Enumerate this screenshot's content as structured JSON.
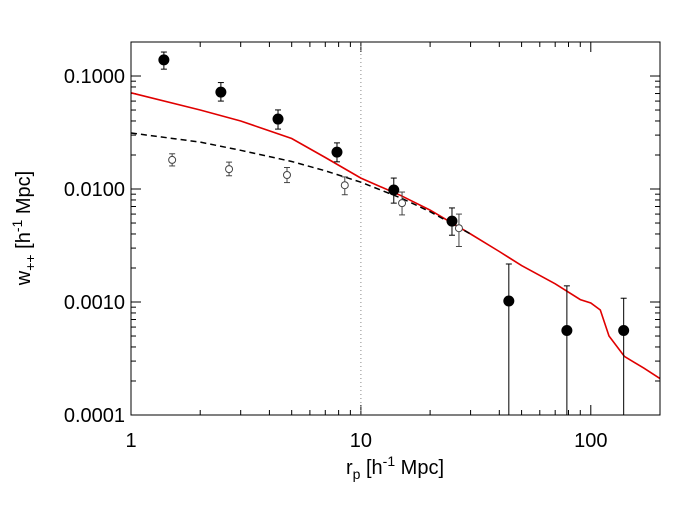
{
  "chart_data": {
    "type": "scatter",
    "log_x": true,
    "log_y": true,
    "xlim": [
      1,
      200
    ],
    "ylim": [
      0.0001,
      0.2
    ],
    "xticks": [
      1,
      10,
      100
    ],
    "xminorticks": [
      2,
      3,
      4,
      5,
      6,
      7,
      8,
      9,
      20,
      30,
      40,
      50,
      60,
      70,
      80,
      90,
      200
    ],
    "yticks": [
      {
        "value": 0.0001,
        "label": "0.0001"
      },
      {
        "value": 0.001,
        "label": "0.0010"
      },
      {
        "value": 0.01,
        "label": "0.0100"
      },
      {
        "value": 0.1,
        "label": "0.1000"
      }
    ],
    "yminorticks": [
      0.0002,
      0.0003,
      0.0004,
      0.0005,
      0.0006,
      0.0007,
      0.0008,
      0.0009,
      0.002,
      0.003,
      0.004,
      0.005,
      0.006,
      0.007,
      0.008,
      0.009,
      0.02,
      0.03,
      0.04,
      0.05,
      0.06,
      0.07,
      0.08,
      0.09,
      0.2
    ],
    "xlabel": {
      "main": "r",
      "sub": "p",
      "a": " [h",
      "sup": "-1",
      "b": " Mpc]"
    },
    "ylabel": {
      "main": "w",
      "sub": "++",
      "a": " [h",
      "sup": "-1",
      "b": " Mpc]"
    },
    "vline": {
      "x": 10,
      "color": "#888888"
    },
    "series": [
      {
        "filled": true,
        "color": "#000000",
        "x": [
          1.39,
          2.46,
          4.36,
          7.87,
          13.9,
          24.9,
          44.0,
          78.7,
          139
        ],
        "values": [
          0.139,
          0.072,
          0.0416,
          0.0212,
          0.0098,
          0.0052,
          0.00102,
          0.00056,
          0.00056
        ],
        "lower": [
          0.115,
          0.06,
          0.0339,
          0.0174,
          0.0075,
          0.0039,
          0.0001,
          0.0001,
          0.0001
        ],
        "upper": [
          0.163,
          0.0875,
          0.0501,
          0.0256,
          0.0125,
          0.0068,
          0.00217,
          0.00139,
          0.00108
        ]
      },
      {
        "filled": false,
        "color": "#444444",
        "x": [
          1.51,
          2.67,
          4.77,
          8.51,
          15.1,
          26.7
        ],
        "values": [
          0.0181,
          0.015,
          0.0133,
          0.0108,
          0.0075,
          0.0045
        ],
        "lower": [
          0.016,
          0.0131,
          0.0114,
          0.0089,
          0.0059,
          0.0031
        ],
        "upper": [
          0.0205,
          0.0173,
          0.0155,
          0.0128,
          0.0094,
          0.006
        ]
      }
    ],
    "lines": [
      {
        "color": "#e00000",
        "dash": false,
        "x": [
          1,
          2,
          3,
          5,
          7,
          10,
          15,
          20,
          30,
          40,
          50,
          70,
          90,
          100,
          110,
          120,
          140,
          170,
          200
        ],
        "values": [
          0.071,
          0.05,
          0.04,
          0.028,
          0.019,
          0.0125,
          0.0087,
          0.0065,
          0.004,
          0.0028,
          0.0021,
          0.00145,
          0.00105,
          0.00098,
          0.00085,
          0.0005,
          0.00033,
          0.00026,
          0.00021
        ]
      },
      {
        "color": "#000000",
        "dash": true,
        "x": [
          1,
          2,
          3,
          5,
          7,
          10,
          15,
          20,
          30
        ],
        "values": [
          0.0313,
          0.026,
          0.022,
          0.0175,
          0.0145,
          0.0115,
          0.0083,
          0.0063,
          0.004
        ]
      }
    ]
  }
}
